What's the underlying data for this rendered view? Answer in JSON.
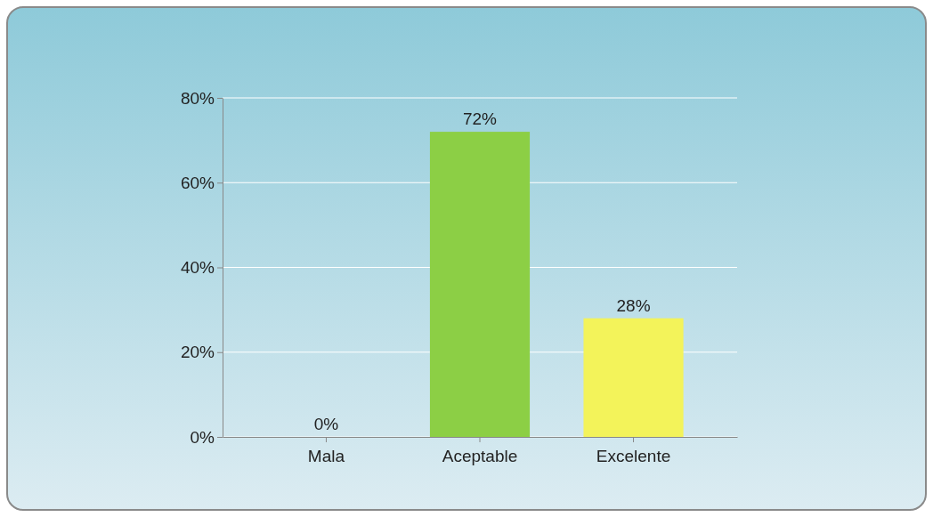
{
  "chart_data": {
    "type": "bar",
    "categories": [
      "Mala",
      "Aceptable",
      "Excelente"
    ],
    "values": [
      0,
      72,
      28
    ],
    "colors": [
      "#1c3557",
      "#8ccf45",
      "#f3f35a"
    ],
    "value_labels": [
      "0%",
      "72%",
      "28%"
    ],
    "ylim": [
      0,
      80
    ],
    "yticks": [
      {
        "value": 0,
        "label": "0%"
      },
      {
        "value": 20,
        "label": "20%"
      },
      {
        "value": 40,
        "label": "40%"
      },
      {
        "value": 60,
        "label": "60%"
      },
      {
        "value": 80,
        "label": "80%"
      }
    ],
    "grid": "y"
  }
}
